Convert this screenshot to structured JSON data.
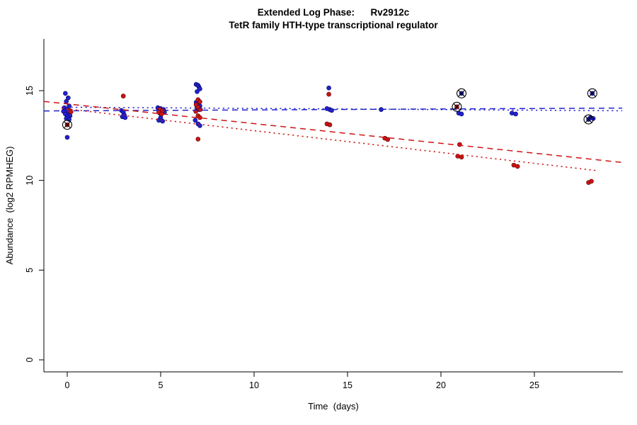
{
  "figure": {
    "title": "Extended Log Phase:      Rv2912c",
    "subtitle": "TetR family HTH-type transcriptional regulator",
    "xlabel": "Time  (days)",
    "ylabel": "Abundance  (log2 RPMHEG)"
  },
  "chart_data": {
    "type": "scatter",
    "title": "Extended Log Phase:      Rv2912c",
    "subtitle": "TetR family HTH-type transcriptional regulator",
    "xlabel": "Time  (days)",
    "ylabel": "Abundance  (log2 RPMHEG)",
    "xlim": [
      -1.3,
      29.7
    ],
    "ylim": [
      -0.7,
      17.9
    ],
    "x_ticks": [
      0,
      5,
      10,
      15,
      20,
      25
    ],
    "y_ticks": [
      0,
      5,
      10,
      15
    ],
    "grid": false,
    "legend": "none",
    "series": [
      {
        "name": "blue",
        "color": "#2222cc",
        "edge": "#000066",
        "points": [
          [
            -0.1,
            14.85
          ],
          [
            0.05,
            14.6
          ],
          [
            -0.05,
            14.4
          ],
          [
            0.1,
            14.15
          ],
          [
            -0.15,
            14.05
          ],
          [
            0,
            13.95
          ],
          [
            0.12,
            13.9
          ],
          [
            -0.2,
            13.85
          ],
          [
            0.05,
            13.8
          ],
          [
            -0.1,
            13.7
          ],
          [
            0.15,
            13.6
          ],
          [
            0,
            13.55
          ],
          [
            -0.05,
            13.45
          ],
          [
            0.1,
            13.4
          ],
          [
            0,
            12.4
          ],
          [
            2.9,
            13.9
          ],
          [
            3,
            13.8
          ],
          [
            3.05,
            13.65
          ],
          [
            2.95,
            13.55
          ],
          [
            3.1,
            13.5
          ],
          [
            4.85,
            14.05
          ],
          [
            5,
            14.0
          ],
          [
            5.15,
            13.95
          ],
          [
            4.9,
            13.9
          ],
          [
            5.05,
            13.85
          ],
          [
            5.2,
            13.8
          ],
          [
            4.95,
            13.75
          ],
          [
            5,
            13.5
          ],
          [
            4.9,
            13.35
          ],
          [
            5.1,
            13.3
          ],
          [
            6.9,
            15.35
          ],
          [
            7,
            15.3
          ],
          [
            7.05,
            15.2
          ],
          [
            7.1,
            15.1
          ],
          [
            6.95,
            14.95
          ],
          [
            6.9,
            14.35
          ],
          [
            7,
            14.25
          ],
          [
            7.1,
            14.15
          ],
          [
            6.95,
            14.05
          ],
          [
            7.05,
            13.95
          ],
          [
            6.85,
            13.35
          ],
          [
            7,
            13.15
          ],
          [
            7.1,
            13.05
          ],
          [
            14,
            15.15
          ],
          [
            13.9,
            14.0
          ],
          [
            14.05,
            13.95
          ],
          [
            14.15,
            13.9
          ],
          [
            16.8,
            13.95
          ],
          [
            21.1,
            14.85
          ],
          [
            20.95,
            13.75
          ],
          [
            21.1,
            13.7
          ],
          [
            23.8,
            13.75
          ],
          [
            24,
            13.7
          ],
          [
            28.1,
            14.85
          ],
          [
            28,
            13.5
          ],
          [
            28.15,
            13.45
          ],
          [
            27.9,
            13.4
          ]
        ]
      },
      {
        "name": "red",
        "color": "#cc1414",
        "edge": "#550000",
        "points": [
          [
            0.1,
            13.9
          ],
          [
            0.2,
            13.82
          ],
          [
            0,
            13.1
          ],
          [
            3,
            14.7
          ],
          [
            4.95,
            13.95
          ],
          [
            5.1,
            13.88
          ],
          [
            4.9,
            13.8
          ],
          [
            5.05,
            13.7
          ],
          [
            7,
            14.5
          ],
          [
            7.1,
            14.38
          ],
          [
            6.9,
            14.22
          ],
          [
            7,
            14.08
          ],
          [
            7.12,
            13.95
          ],
          [
            6.88,
            13.85
          ],
          [
            7,
            13.6
          ],
          [
            7.1,
            13.5
          ],
          [
            7,
            12.3
          ],
          [
            14,
            14.8
          ],
          [
            13.9,
            13.15
          ],
          [
            14.05,
            13.1
          ],
          [
            17,
            12.35
          ],
          [
            17.15,
            12.28
          ],
          [
            20.85,
            14.1
          ],
          [
            21,
            12.0
          ],
          [
            20.9,
            11.35
          ],
          [
            21.1,
            11.3
          ],
          [
            23.9,
            10.85
          ],
          [
            24.1,
            10.78
          ],
          [
            27.9,
            9.88
          ],
          [
            28.05,
            9.95
          ]
        ]
      }
    ],
    "trend_lines": [
      {
        "name": "blue-dashed",
        "style": "dashed",
        "color": "#2222cc",
        "from": [
          -1.25,
          13.87
        ],
        "to": [
          29.7,
          14.03
        ]
      },
      {
        "name": "blue-dotted",
        "style": "dotted",
        "color": "#2222cc",
        "from": [
          -0.3,
          14.08
        ],
        "to": [
          29.7,
          13.88
        ]
      },
      {
        "name": "red-dashed",
        "style": "dashed",
        "color": "#cc1414",
        "from": [
          -1.25,
          14.4
        ],
        "to": [
          29.7,
          11.0
        ]
      },
      {
        "name": "red-dotted",
        "style": "dotted",
        "color": "#cc1414",
        "from": [
          -0.3,
          14.02
        ],
        "to": [
          28.3,
          10.55
        ]
      }
    ],
    "circled_points": [
      [
        0,
        13.1
      ],
      [
        20.85,
        14.1
      ],
      [
        21.1,
        14.85
      ],
      [
        28.1,
        14.85
      ],
      [
        27.9,
        13.4
      ]
    ]
  }
}
